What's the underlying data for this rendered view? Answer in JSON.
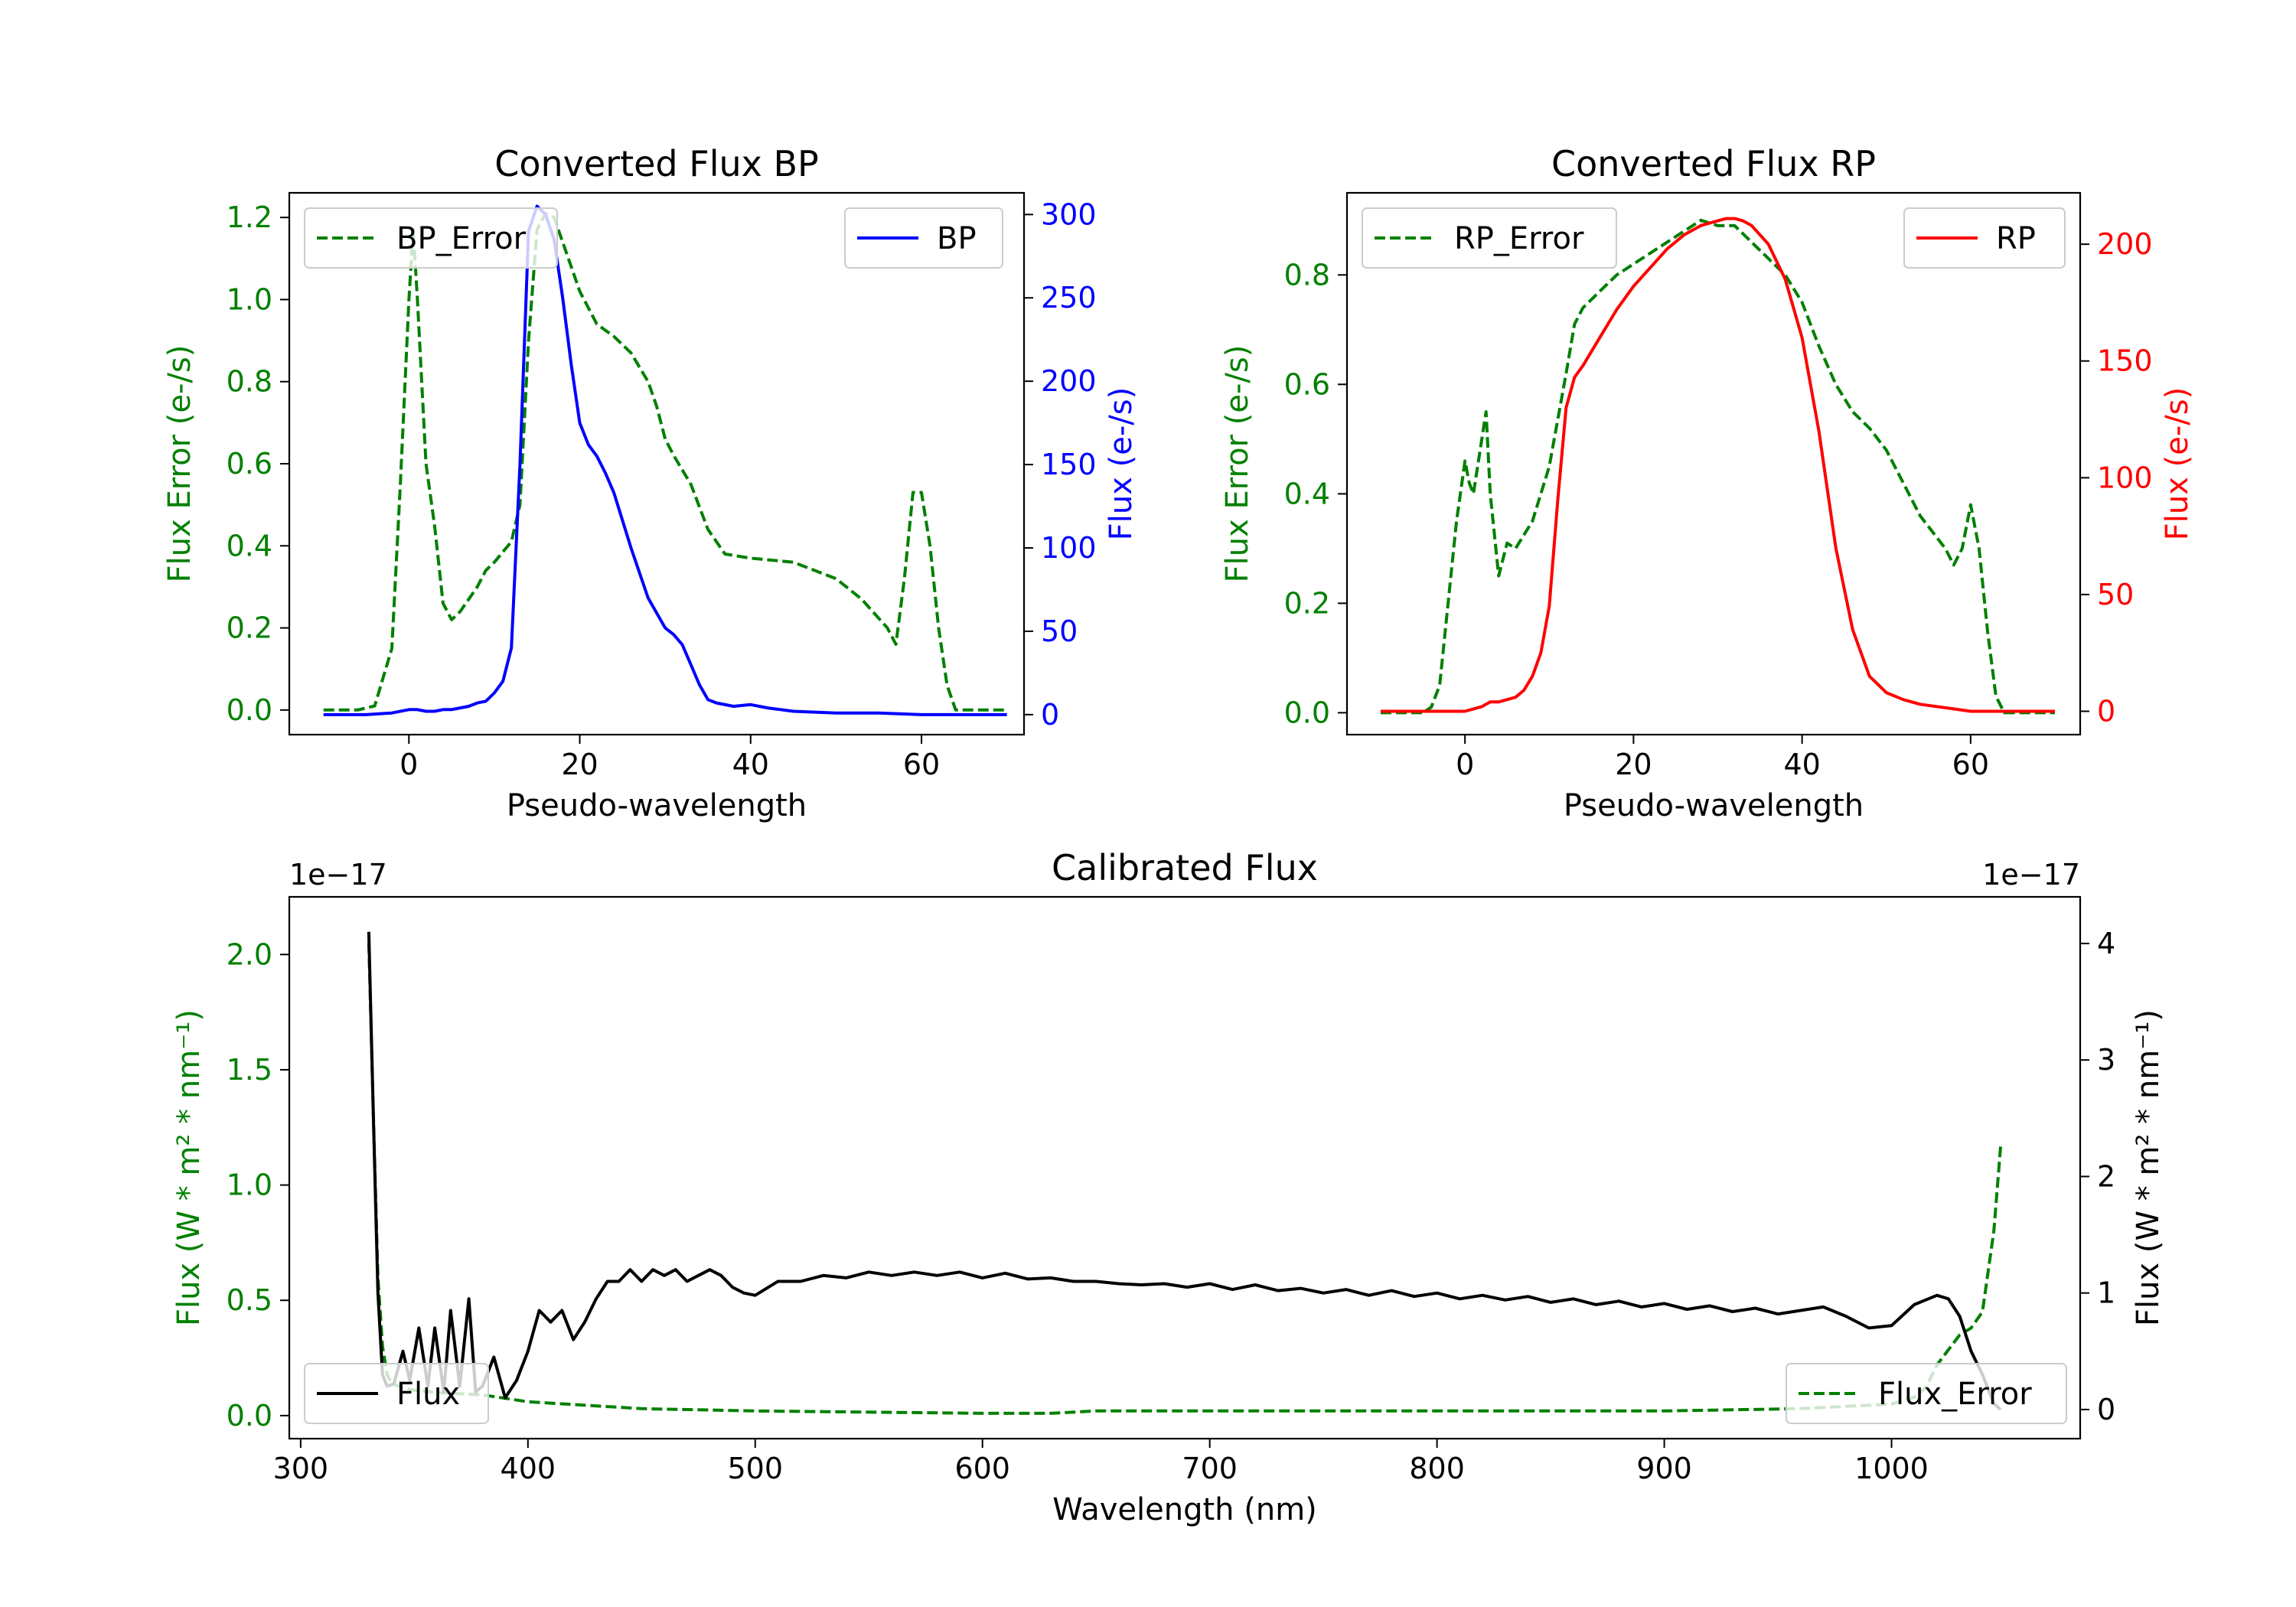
{
  "chart_data": [
    {
      "id": "bp",
      "type": "line",
      "title": "Converted Flux BP",
      "xlabel": "Pseudo-wavelength",
      "xlim": [
        -14,
        72
      ],
      "xticks": [
        "0",
        "20",
        "40",
        "60"
      ],
      "left_axis": {
        "label": "Flux Error (e-/s)",
        "color": "#008000",
        "ylim": [
          -0.06,
          1.26
        ],
        "ticks": [
          "0.0",
          "0.2",
          "0.4",
          "0.6",
          "0.8",
          "1.0",
          "1.2"
        ]
      },
      "right_axis": {
        "label": "Flux (e-/s)",
        "color": "#0000ff",
        "ylim": [
          -12,
          313
        ],
        "ticks": [
          "0",
          "50",
          "100",
          "150",
          "200",
          "250",
          "300"
        ]
      },
      "series": [
        {
          "name": "BP_Error",
          "axis": "left",
          "color": "#008000",
          "dashed": true,
          "x": [
            -10,
            -6,
            -4,
            -2,
            -1,
            0,
            0.5,
            1,
            2,
            3,
            4,
            5,
            6,
            8,
            9,
            10,
            12,
            13,
            14,
            15,
            16,
            17,
            18,
            19,
            20,
            22,
            24,
            26,
            28,
            29,
            30,
            31,
            33,
            35,
            37,
            40,
            45,
            50,
            53,
            56,
            57,
            58,
            59,
            60,
            61,
            62,
            63,
            64,
            66,
            68,
            70
          ],
          "y": [
            0.0,
            0.0,
            0.01,
            0.15,
            0.55,
            1.0,
            1.17,
            1.0,
            0.6,
            0.45,
            0.26,
            0.22,
            0.24,
            0.3,
            0.34,
            0.36,
            0.41,
            0.5,
            0.9,
            1.17,
            1.21,
            1.2,
            1.14,
            1.08,
            1.02,
            0.94,
            0.91,
            0.87,
            0.8,
            0.74,
            0.66,
            0.62,
            0.55,
            0.44,
            0.38,
            0.37,
            0.36,
            0.32,
            0.27,
            0.2,
            0.16,
            0.32,
            0.53,
            0.53,
            0.4,
            0.2,
            0.06,
            0.0,
            0.0,
            0.0,
            0.0
          ],
          "gap": [
            -4,
            17
          ]
        },
        {
          "name": "BP",
          "axis": "right",
          "color": "#0000ff",
          "dashed": false,
          "x": [
            -10,
            -5,
            -2,
            0,
            1,
            2,
            3,
            4,
            5,
            6,
            7,
            8,
            9,
            10,
            11,
            12,
            13,
            14,
            15,
            16,
            17,
            18,
            19,
            20,
            21,
            22,
            23,
            24,
            26,
            28,
            30,
            31,
            32,
            33,
            34,
            35,
            36,
            38,
            40,
            42,
            45,
            50,
            55,
            60,
            65,
            70
          ],
          "y": [
            0,
            0,
            1,
            3,
            3,
            2,
            2,
            3,
            3,
            4,
            5,
            7,
            8,
            13,
            20,
            40,
            150,
            290,
            305,
            300,
            285,
            250,
            210,
            175,
            162,
            155,
            145,
            133,
            100,
            70,
            52,
            48,
            42,
            30,
            18,
            9,
            7,
            5,
            6,
            4,
            2,
            1,
            1,
            0,
            0,
            0
          ]
        }
      ]
    },
    {
      "id": "rp",
      "type": "line",
      "title": "Converted Flux RP",
      "xlabel": "Pseudo-wavelength",
      "xlim": [
        -14,
        73
      ],
      "xticks": [
        "0",
        "20",
        "40",
        "60"
      ],
      "left_axis": {
        "label": "Flux Error (e-/s)",
        "color": "#008000",
        "ylim": [
          -0.04,
          0.95
        ],
        "ticks": [
          "0.0",
          "0.2",
          "0.4",
          "0.6",
          "0.8"
        ]
      },
      "right_axis": {
        "label": "Flux (e-/s)",
        "color": "#ff0000",
        "ylim": [
          -10,
          222
        ],
        "ticks": [
          "0",
          "50",
          "100",
          "150",
          "200"
        ]
      },
      "series": [
        {
          "name": "RP_Error",
          "axis": "left",
          "color": "#008000",
          "dashed": true,
          "x": [
            -10,
            -5,
            -4,
            -3,
            -2,
            -1,
            0,
            0.5,
            1,
            2,
            2.5,
            3,
            4,
            5,
            6,
            8,
            10,
            12,
            13,
            14,
            16,
            18,
            20,
            22,
            24,
            26,
            28,
            30,
            32,
            34,
            36,
            38,
            40,
            42,
            44,
            46,
            48,
            50,
            52,
            54,
            56,
            57,
            58,
            59,
            60,
            61,
            62,
            63,
            64,
            66,
            68,
            70
          ],
          "y": [
            0.0,
            0.0,
            0.01,
            0.05,
            0.2,
            0.35,
            0.46,
            0.42,
            0.4,
            0.5,
            0.55,
            0.4,
            0.25,
            0.31,
            0.3,
            0.35,
            0.45,
            0.62,
            0.71,
            0.74,
            0.77,
            0.8,
            0.82,
            0.84,
            0.86,
            0.88,
            0.9,
            0.89,
            0.89,
            0.86,
            0.83,
            0.8,
            0.75,
            0.67,
            0.6,
            0.55,
            0.52,
            0.48,
            0.42,
            0.36,
            0.32,
            0.3,
            0.27,
            0.3,
            0.38,
            0.3,
            0.15,
            0.03,
            0.0,
            0.0,
            0.0,
            0.0
          ],
          "gap": [
            -4,
            33
          ]
        },
        {
          "name": "RP",
          "axis": "right",
          "color": "#ff0000",
          "dashed": false,
          "x": [
            -10,
            -5,
            -2,
            0,
            1,
            2,
            3,
            4,
            5,
            6,
            7,
            8,
            9,
            10,
            11,
            12,
            13,
            14,
            16,
            18,
            20,
            22,
            24,
            26,
            28,
            30,
            31,
            32,
            33,
            34,
            36,
            38,
            40,
            42,
            44,
            46,
            48,
            50,
            52,
            54,
            56,
            58,
            60,
            62,
            65,
            70
          ],
          "y": [
            0,
            0,
            0,
            0,
            1,
            2,
            4,
            4,
            5,
            6,
            9,
            15,
            25,
            45,
            90,
            130,
            143,
            148,
            160,
            172,
            182,
            190,
            198,
            204,
            208,
            210,
            211,
            211,
            210,
            208,
            200,
            185,
            160,
            120,
            70,
            35,
            15,
            8,
            5,
            3,
            2,
            1,
            0,
            0,
            0,
            0
          ]
        }
      ]
    },
    {
      "id": "cal",
      "type": "line",
      "title": "Calibrated Flux",
      "xlabel": "Wavelength (nm)",
      "xlim": [
        295,
        1083
      ],
      "xticks": [
        "300",
        "400",
        "500",
        "600",
        "700",
        "800",
        "900",
        "1000"
      ],
      "left_axis": {
        "label": "Flux (W * m² * nm⁻¹)",
        "color": "#008000",
        "ylim": [
          -0.1,
          2.25
        ],
        "ticks": [
          "0.0",
          "0.5",
          "1.0",
          "1.5",
          "2.0"
        ],
        "offset": "1e−17"
      },
      "right_axis": {
        "label": "Flux (W * m² * nm⁻¹)",
        "color": "#000000",
        "ylim": [
          -0.25,
          4.4
        ],
        "ticks": [
          "0",
          "1",
          "2",
          "3",
          "4"
        ],
        "offset": "1e−17"
      },
      "series": [
        {
          "name": "Flux_Error",
          "axis": "left",
          "color": "#008000",
          "dashed": true,
          "x": [
            330,
            332,
            334,
            336,
            338,
            340,
            345,
            350,
            360,
            380,
            400,
            450,
            500,
            600,
            630,
            650,
            700,
            800,
            900,
            960,
            1000,
            1010,
            1015,
            1020,
            1030,
            1035,
            1040,
            1045,
            1048
          ],
          "y": [
            2.05,
            1.3,
            0.6,
            0.3,
            0.18,
            0.14,
            0.12,
            0.11,
            0.1,
            0.09,
            0.06,
            0.03,
            0.02,
            0.01,
            0.01,
            0.02,
            0.02,
            0.02,
            0.02,
            0.03,
            0.05,
            0.08,
            0.12,
            0.22,
            0.35,
            0.38,
            0.45,
            0.8,
            1.17
          ],
          "gap": [
            960,
            1020
          ]
        },
        {
          "name": "Flux",
          "axis": "right",
          "color": "#000000",
          "dashed": false,
          "x": [
            330,
            332,
            334,
            336,
            338,
            341,
            345,
            348,
            352,
            356,
            359,
            363,
            366,
            370,
            374,
            377,
            380,
            385,
            390,
            395,
            400,
            405,
            410,
            415,
            420,
            425,
            430,
            435,
            440,
            445,
            450,
            455,
            460,
            465,
            470,
            475,
            480,
            485,
            490,
            495,
            500,
            510,
            520,
            530,
            540,
            550,
            560,
            570,
            580,
            590,
            600,
            610,
            620,
            630,
            640,
            650,
            660,
            670,
            680,
            690,
            700,
            710,
            720,
            730,
            740,
            750,
            760,
            770,
            780,
            790,
            800,
            810,
            820,
            830,
            840,
            850,
            860,
            870,
            880,
            890,
            900,
            910,
            920,
            930,
            940,
            950,
            960,
            970,
            980,
            990,
            1000,
            1010,
            1020,
            1025,
            1030,
            1035,
            1040,
            1045,
            1048
          ],
          "y": [
            4.1,
            2.5,
            1.0,
            0.3,
            0.2,
            0.22,
            0.5,
            0.25,
            0.7,
            0.2,
            0.7,
            0.15,
            0.85,
            0.2,
            0.95,
            0.15,
            0.2,
            0.45,
            0.1,
            0.25,
            0.5,
            0.85,
            0.75,
            0.85,
            0.6,
            0.75,
            0.95,
            1.1,
            1.1,
            1.2,
            1.1,
            1.2,
            1.15,
            1.2,
            1.1,
            1.15,
            1.2,
            1.15,
            1.05,
            1.0,
            0.98,
            1.1,
            1.1,
            1.15,
            1.13,
            1.18,
            1.15,
            1.18,
            1.15,
            1.18,
            1.13,
            1.17,
            1.12,
            1.13,
            1.1,
            1.1,
            1.08,
            1.07,
            1.08,
            1.05,
            1.08,
            1.03,
            1.07,
            1.02,
            1.04,
            1.0,
            1.03,
            0.98,
            1.02,
            0.97,
            1.0,
            0.95,
            0.98,
            0.94,
            0.97,
            0.92,
            0.95,
            0.9,
            0.93,
            0.88,
            0.91,
            0.86,
            0.89,
            0.84,
            0.87,
            0.82,
            0.85,
            0.88,
            0.8,
            0.7,
            0.72,
            0.9,
            0.98,
            0.95,
            0.8,
            0.5,
            0.3,
            0.05,
            0.0
          ],
          "gap": [
            340,
            390
          ]
        }
      ]
    }
  ],
  "colors": {
    "green": "#008000",
    "blue": "#0000ff",
    "red": "#ff0000",
    "black": "#000000"
  }
}
